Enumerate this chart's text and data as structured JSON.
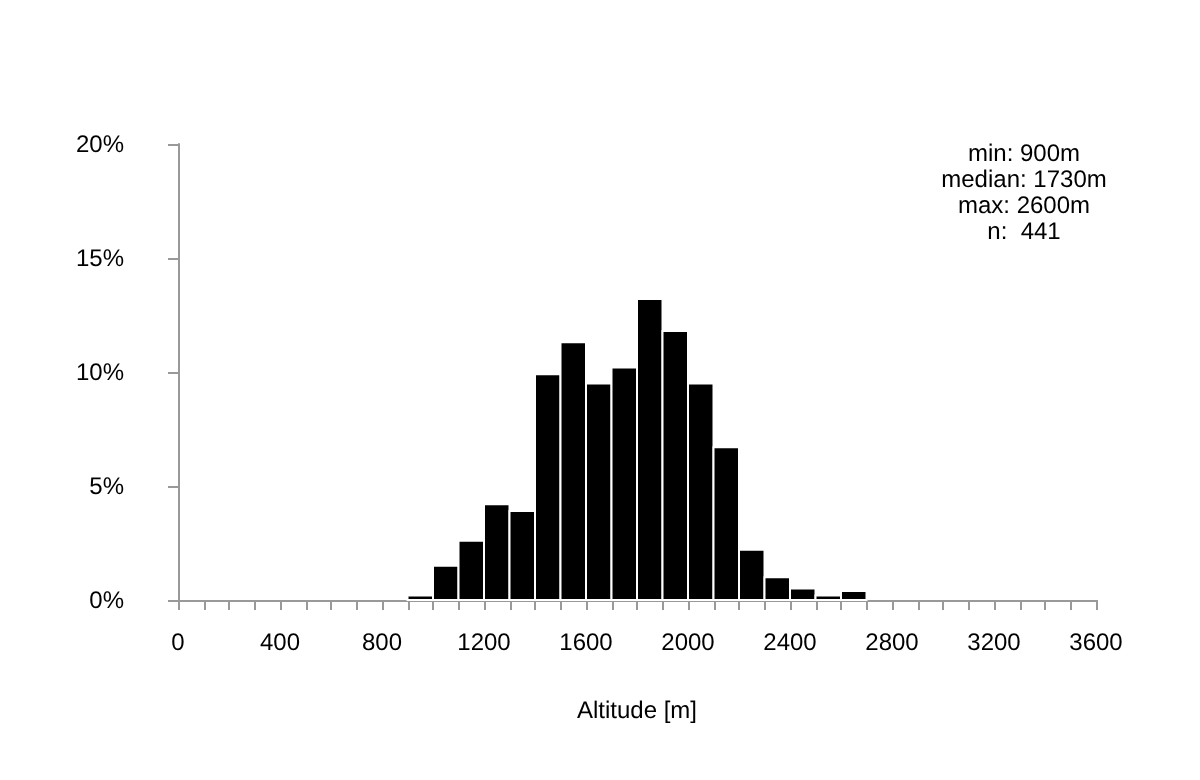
{
  "chart_data": {
    "type": "histogram",
    "xlabel": "Altitude [m]",
    "bins": [
      900,
      1000,
      1100,
      1200,
      1300,
      1400,
      1500,
      1600,
      1700,
      1800,
      1900,
      2000,
      2100,
      2200,
      2300,
      2400,
      2500,
      2600,
      2700
    ],
    "values": [
      0.2,
      1.5,
      2.6,
      4.2,
      3.9,
      9.9,
      11.3,
      9.5,
      10.2,
      13.2,
      11.8,
      9.5,
      6.7,
      2.2,
      1.0,
      0.5,
      0.2,
      0.4
    ],
    "color": "#000000",
    "xlim": [
      0,
      3600
    ],
    "xticks": [
      0,
      {
        "value": 100,
        "label": null
      },
      {
        "value": 200,
        "label": null
      },
      {
        "value": 300,
        "label": null
      },
      400,
      {
        "value": 500,
        "label": null
      },
      {
        "value": 600,
        "label": null
      },
      {
        "value": 700,
        "label": null
      },
      800,
      {
        "value": 900,
        "label": null
      },
      {
        "value": 1000,
        "label": null
      },
      {
        "value": 1100,
        "label": null
      },
      1200,
      {
        "value": 1300,
        "label": null
      },
      {
        "value": 1400,
        "label": null
      },
      {
        "value": 1500,
        "label": null
      },
      1600,
      {
        "value": 1700,
        "label": null
      },
      {
        "value": 1800,
        "label": null
      },
      {
        "value": 1900,
        "label": null
      },
      2000,
      {
        "value": 2100,
        "label": null
      },
      {
        "value": 2200,
        "label": null
      },
      {
        "value": 2300,
        "label": null
      },
      2400,
      {
        "value": 2500,
        "label": null
      },
      {
        "value": 2600,
        "label": null
      },
      {
        "value": 2700,
        "label": null
      },
      2800,
      {
        "value": 2900,
        "label": null
      },
      {
        "value": 3000,
        "label": null
      },
      {
        "value": 3100,
        "label": null
      },
      3200,
      {
        "value": 3300,
        "label": null
      },
      {
        "value": 3400,
        "label": null
      },
      {
        "value": 3500,
        "label": null
      },
      3600
    ],
    "ylim": [
      0,
      20
    ],
    "yticks": [
      {
        "value": 0,
        "label": "0%"
      },
      {
        "value": 5,
        "label": "5%"
      },
      {
        "value": 10,
        "label": "10%"
      },
      {
        "value": 15,
        "label": "15%"
      },
      {
        "value": 20,
        "label": "20%"
      }
    ],
    "annotations": [
      "min: 900m",
      "median: 1730m",
      "max: 2600m",
      "n:  441"
    ],
    "grid": false
  }
}
